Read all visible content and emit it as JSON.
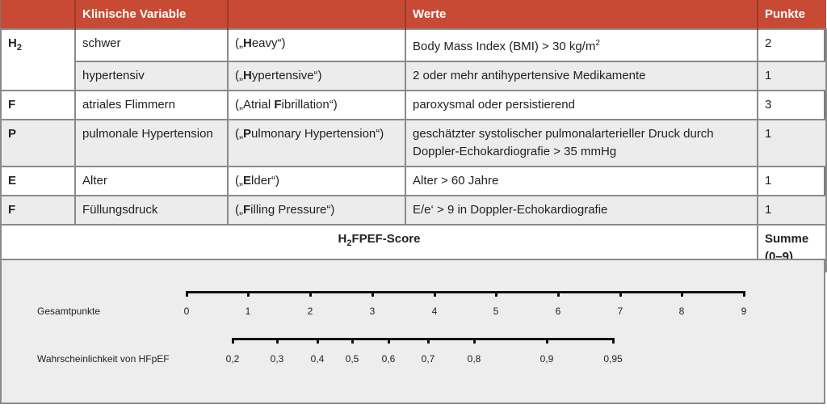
{
  "table": {
    "headers": [
      "",
      "Klinische Variable",
      "",
      "Werte",
      "Punkte"
    ],
    "rows": [
      {
        "abbr": "H",
        "abbr_sub": "2",
        "variable": "schwer",
        "english_prefix": "(„",
        "english_bold": "H",
        "english_rest": "eavy“)",
        "werte": "Body Mass Index (BMI) > 30 kg/m",
        "werte_sup": "2",
        "punkte": "2"
      },
      {
        "abbr": "",
        "variable": "hypertensiv",
        "english_prefix": "(„",
        "english_bold": "H",
        "english_rest": "ypertensive“)",
        "werte": "2 oder mehr antihypertensive Medikamente",
        "punkte": "1"
      },
      {
        "abbr": "F",
        "variable": "atriales Flimmern",
        "english_prefix": "(„Atrial ",
        "english_bold": "F",
        "english_rest": "ibrillation“)",
        "werte": "paroxysmal oder persistierend",
        "punkte": "3"
      },
      {
        "abbr": "P",
        "variable": "pulmonale Hypertension",
        "english_prefix": "(„",
        "english_bold": "P",
        "english_rest": "ulmonary Hypertension“)",
        "werte": "geschätzter systolischer pulmonalarterieller Druck durch Doppler-Echokardiografie > 35 mmHg",
        "punkte": "1"
      },
      {
        "abbr": "E",
        "variable": "Alter",
        "english_prefix": " („",
        "english_bold": "E",
        "english_rest": "lder“)",
        "werte": "Alter > 60 Jahre",
        "punkte": "1"
      },
      {
        "abbr": "F",
        "variable": "Füllungsdruck",
        "english_prefix": " („",
        "english_bold": "F",
        "english_rest": "illing Pressure“)",
        "werte": "E/e‘ > 9 in Doppler-Echokardiografie",
        "punkte": "1"
      }
    ],
    "score_row": {
      "title_pre": "H",
      "title_sub": "2",
      "title_post": "FPEF-Score",
      "summe_line1": "Summe",
      "summe_line2": "(0–9)"
    }
  },
  "nomogram": {
    "score_axis": {
      "label": "Gesamtpunkte",
      "ticks": [
        "0",
        "1",
        "2",
        "3",
        "4",
        "5",
        "6",
        "7",
        "8",
        "9"
      ]
    },
    "probability_axis": {
      "label": "Wahrscheinlichkeit von HFpEF",
      "ticks": [
        "0,2",
        "0,3",
        "0,4",
        "0,5",
        "0,6",
        "0,7",
        "0,8",
        "0,9",
        "0,95"
      ]
    }
  },
  "colors": {
    "header_bg": "#c84a34",
    "alt_row_bg": "#ececec",
    "nomogram_bg": "#ededed"
  }
}
